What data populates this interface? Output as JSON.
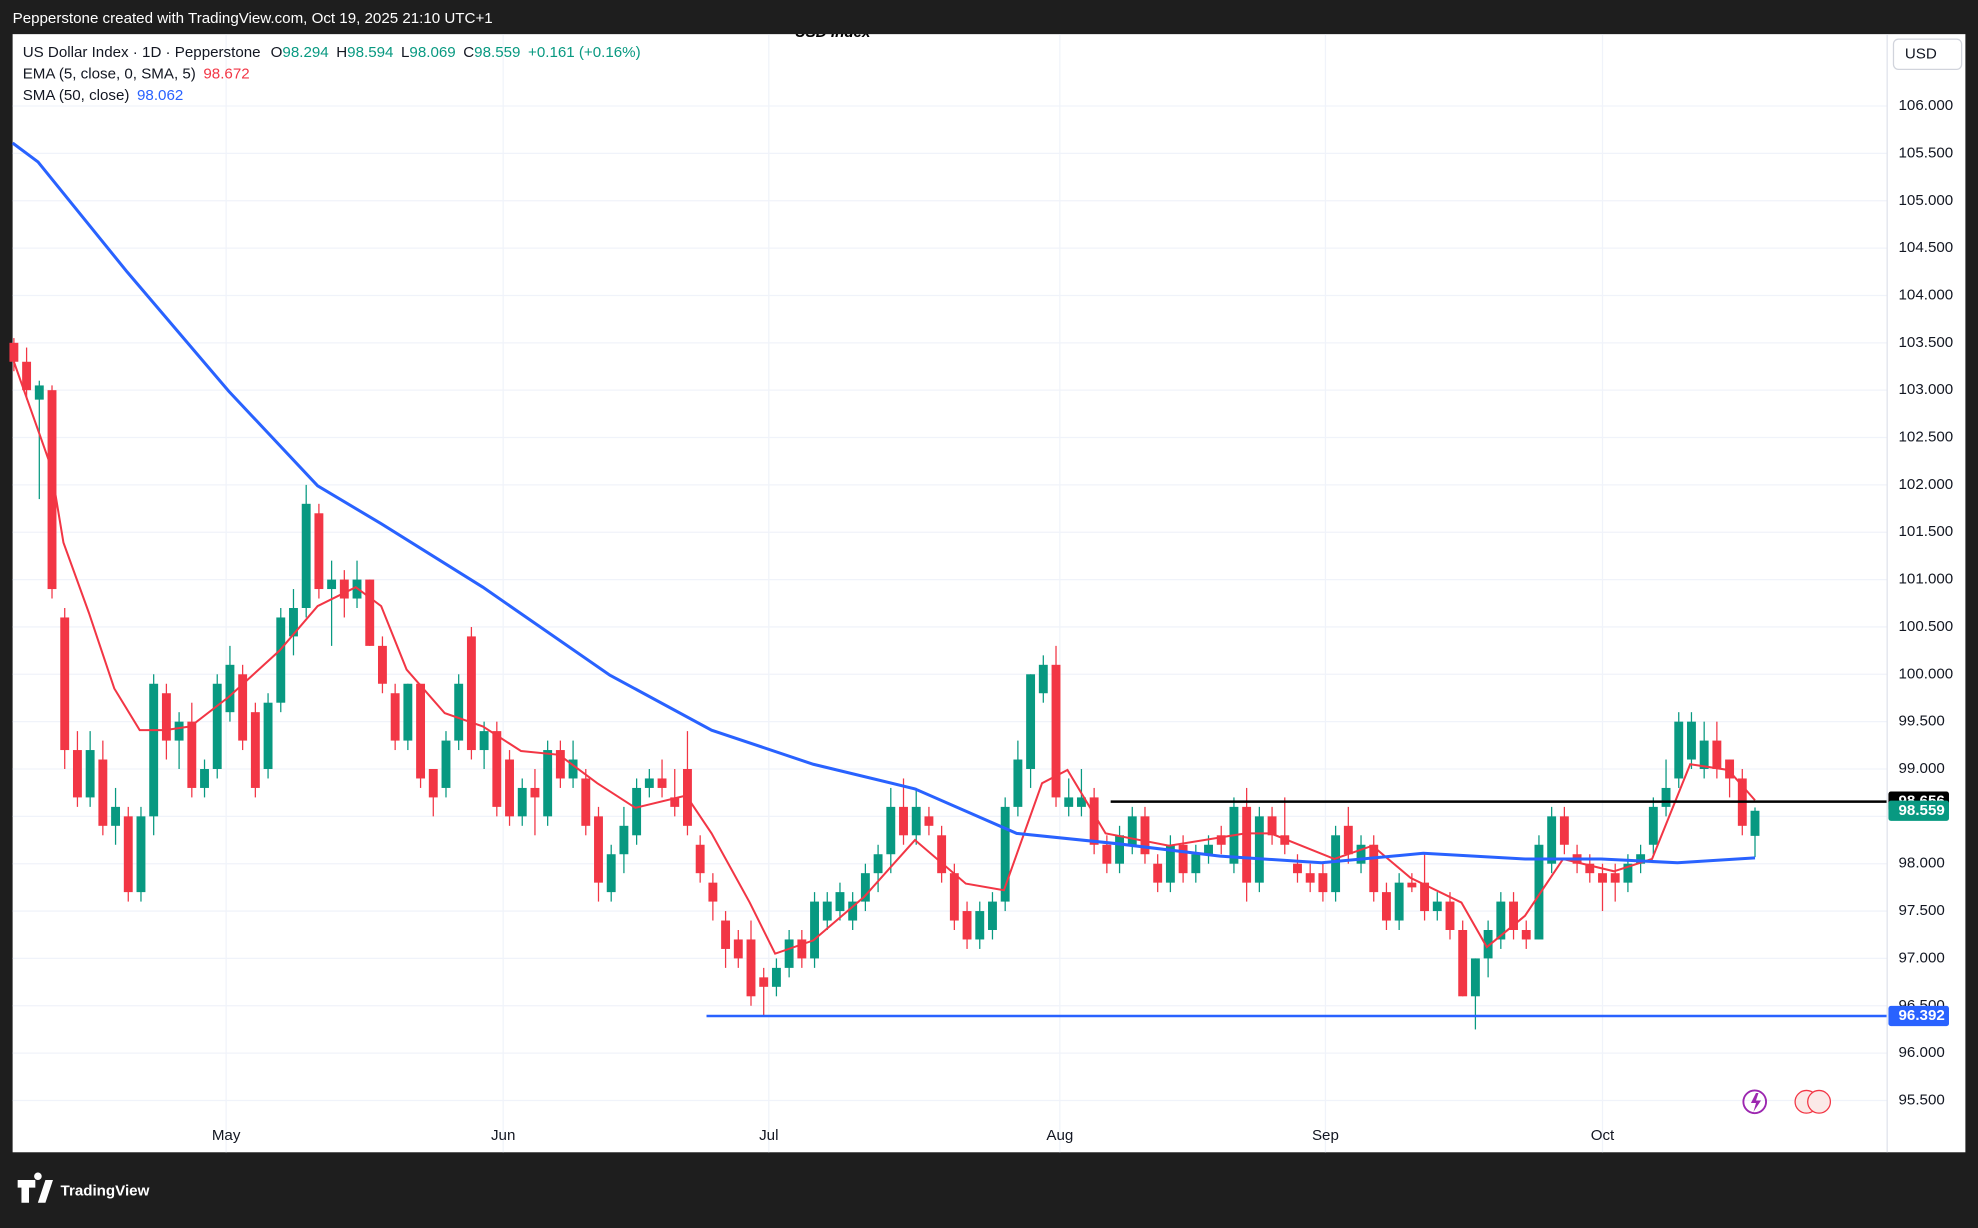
{
  "chart_data": {
    "type": "candlestick",
    "title": "USD Index",
    "attribution": "Pepperstone created with TradingView.com, Oct 19, 2025 21:10 UTC+1",
    "brand": "TradingView",
    "currency": "USD",
    "legend": {
      "symbol": "US Dollar Index · 1D · Pepperstone",
      "ohlc_labels": [
        "O",
        "H",
        "L",
        "C"
      ],
      "ohlc_values": [
        "98.294",
        "98.594",
        "98.069",
        "98.559"
      ],
      "change": "+0.161 (+0.16%)",
      "ema_label": "EMA (5, close, 0, SMA, 5)",
      "ema_value": "98.672",
      "sma_label": "SMA (50, close)",
      "sma_value": "98.062"
    },
    "up_color": "#089981",
    "down_color": "#f23645",
    "xlim": [
      -0.1,
      147.4
    ],
    "ylim": [
      94.953,
      106.76
    ],
    "xticks": [
      {
        "value": 16.7,
        "label": "May"
      },
      {
        "value": 38.5,
        "label": "Jun"
      },
      {
        "value": 59.4,
        "label": "Jul"
      },
      {
        "value": 82.3,
        "label": "Aug"
      },
      {
        "value": 103.2,
        "label": "Sep"
      },
      {
        "value": 125.0,
        "label": "Oct"
      }
    ],
    "yticks": [
      {
        "value": 95.5,
        "label": "95.500"
      },
      {
        "value": 96,
        "label": "96.000"
      },
      {
        "value": 96.5,
        "label": "96.500"
      },
      {
        "value": 97,
        "label": "97.000"
      },
      {
        "value": 97.5,
        "label": "97.500"
      },
      {
        "value": 98,
        "label": "98.000"
      },
      {
        "value": 98.5,
        "label": "98.500"
      },
      {
        "value": 99,
        "label": "99.000"
      },
      {
        "value": 99.5,
        "label": "99.500"
      },
      {
        "value": 100,
        "label": "100.000"
      },
      {
        "value": 100.5,
        "label": "100.500"
      },
      {
        "value": 101,
        "label": "101.000"
      },
      {
        "value": 101.5,
        "label": "101.500"
      },
      {
        "value": 102,
        "label": "102.000"
      },
      {
        "value": 102.5,
        "label": "102.500"
      },
      {
        "value": 103,
        "label": "103.000"
      },
      {
        "value": 103.5,
        "label": "103.500"
      },
      {
        "value": 104,
        "label": "104.000"
      },
      {
        "value": 104.5,
        "label": "104.500"
      },
      {
        "value": 105,
        "label": "105.000"
      },
      {
        "value": 105.5,
        "label": "105.500"
      },
      {
        "value": 106,
        "label": "106.000"
      }
    ],
    "grid": true,
    "candles": [
      [
        103.5,
        103.55,
        103.2,
        103.3
      ],
      [
        103.3,
        103.45,
        102.9,
        103.0
      ],
      [
        102.9,
        103.1,
        101.85,
        103.05
      ],
      [
        103.0,
        103.05,
        100.8,
        100.9
      ],
      [
        100.6,
        100.7,
        99.0,
        99.2
      ],
      [
        99.2,
        99.4,
        98.6,
        98.7
      ],
      [
        98.7,
        99.4,
        98.6,
        99.2
      ],
      [
        99.1,
        99.3,
        98.3,
        98.4
      ],
      [
        98.4,
        98.8,
        98.2,
        98.6
      ],
      [
        98.5,
        98.6,
        97.6,
        97.7
      ],
      [
        97.7,
        98.6,
        97.6,
        98.5
      ],
      [
        98.5,
        100.0,
        98.3,
        99.9
      ],
      [
        99.8,
        99.9,
        99.1,
        99.3
      ],
      [
        99.3,
        99.6,
        99.0,
        99.5
      ],
      [
        99.5,
        99.7,
        98.7,
        98.8
      ],
      [
        98.8,
        99.1,
        98.7,
        99.0
      ],
      [
        99.0,
        100.0,
        98.9,
        99.9
      ],
      [
        99.6,
        100.3,
        99.5,
        100.1
      ],
      [
        100.0,
        100.1,
        99.2,
        99.3
      ],
      [
        99.6,
        99.7,
        98.7,
        98.8
      ],
      [
        99.0,
        99.8,
        98.9,
        99.7
      ],
      [
        99.7,
        100.7,
        99.6,
        100.6
      ],
      [
        100.4,
        100.9,
        100.2,
        100.7
      ],
      [
        100.7,
        102.0,
        100.6,
        101.8
      ],
      [
        101.7,
        101.8,
        100.8,
        100.9
      ],
      [
        100.9,
        101.2,
        100.3,
        101.0
      ],
      [
        101.0,
        101.1,
        100.6,
        100.8
      ],
      [
        100.8,
        101.2,
        100.7,
        101.0
      ],
      [
        101.0,
        101.0,
        100.3,
        100.3
      ],
      [
        100.3,
        100.4,
        99.8,
        99.9
      ],
      [
        99.8,
        99.9,
        99.2,
        99.3
      ],
      [
        99.3,
        99.9,
        99.2,
        99.9
      ],
      [
        99.9,
        99.9,
        98.8,
        98.9
      ],
      [
        99.0,
        99.0,
        98.5,
        98.7
      ],
      [
        98.8,
        99.4,
        98.7,
        99.3
      ],
      [
        99.3,
        100.0,
        99.2,
        99.9
      ],
      [
        100.4,
        100.5,
        99.1,
        99.2
      ],
      [
        99.2,
        99.5,
        99.0,
        99.4
      ],
      [
        99.4,
        99.5,
        98.5,
        98.6
      ],
      [
        99.1,
        99.2,
        98.4,
        98.5
      ],
      [
        98.5,
        98.9,
        98.4,
        98.8
      ],
      [
        98.8,
        99.0,
        98.3,
        98.7
      ],
      [
        98.5,
        99.3,
        98.4,
        99.2
      ],
      [
        99.2,
        99.3,
        98.8,
        98.9
      ],
      [
        98.9,
        99.3,
        98.8,
        99.1
      ],
      [
        98.9,
        99.0,
        98.3,
        98.4
      ],
      [
        98.5,
        98.6,
        97.6,
        97.8
      ],
      [
        97.7,
        98.2,
        97.6,
        98.1
      ],
      [
        98.1,
        98.6,
        97.9,
        98.4
      ],
      [
        98.3,
        98.9,
        98.2,
        98.8
      ],
      [
        98.8,
        99.0,
        98.7,
        98.9
      ],
      [
        98.9,
        99.1,
        98.7,
        98.8
      ],
      [
        98.7,
        99.0,
        98.5,
        98.6
      ],
      [
        99.0,
        99.4,
        98.3,
        98.4
      ],
      [
        98.2,
        98.3,
        97.8,
        97.9
      ],
      [
        97.8,
        97.9,
        97.4,
        97.6
      ],
      [
        97.4,
        97.5,
        96.9,
        97.1
      ],
      [
        97.2,
        97.3,
        96.9,
        97.0
      ],
      [
        97.2,
        97.4,
        96.5,
        96.6
      ],
      [
        96.8,
        96.9,
        96.4,
        96.7
      ],
      [
        96.7,
        97.0,
        96.6,
        96.9
      ],
      [
        96.9,
        97.3,
        96.8,
        97.2
      ],
      [
        97.2,
        97.3,
        96.9,
        97.0
      ],
      [
        97.0,
        97.7,
        96.9,
        97.6
      ],
      [
        97.4,
        97.7,
        97.3,
        97.6
      ],
      [
        97.5,
        97.8,
        97.4,
        97.7
      ],
      [
        97.4,
        97.7,
        97.3,
        97.6
      ],
      [
        97.6,
        98.0,
        97.5,
        97.9
      ],
      [
        97.9,
        98.2,
        97.7,
        98.1
      ],
      [
        98.1,
        98.8,
        97.9,
        98.6
      ],
      [
        98.6,
        98.9,
        98.2,
        98.3
      ],
      [
        98.3,
        98.8,
        98.2,
        98.6
      ],
      [
        98.5,
        98.6,
        98.3,
        98.4
      ],
      [
        98.3,
        98.4,
        97.8,
        97.9
      ],
      [
        97.9,
        98.0,
        97.3,
        97.4
      ],
      [
        97.5,
        97.6,
        97.1,
        97.2
      ],
      [
        97.2,
        97.6,
        97.1,
        97.5
      ],
      [
        97.3,
        97.7,
        97.2,
        97.6
      ],
      [
        97.6,
        98.7,
        97.5,
        98.6
      ],
      [
        98.6,
        99.3,
        98.5,
        99.1
      ],
      [
        99.0,
        100.0,
        98.8,
        100.0
      ],
      [
        99.8,
        100.2,
        99.7,
        100.1
      ],
      [
        100.1,
        100.3,
        98.6,
        98.7
      ],
      [
        98.6,
        98.9,
        98.5,
        98.7
      ],
      [
        98.6,
        99.0,
        98.5,
        98.7
      ],
      [
        98.7,
        98.8,
        98.1,
        98.2
      ],
      [
        98.2,
        98.3,
        97.9,
        98.0
      ],
      [
        98.0,
        98.4,
        97.9,
        98.3
      ],
      [
        98.2,
        98.6,
        98.1,
        98.5
      ],
      [
        98.5,
        98.6,
        98.0,
        98.1
      ],
      [
        98.0,
        98.1,
        97.7,
        97.8
      ],
      [
        97.8,
        98.3,
        97.7,
        98.2
      ],
      [
        98.2,
        98.3,
        97.8,
        97.9
      ],
      [
        97.9,
        98.2,
        97.8,
        98.1
      ],
      [
        98.1,
        98.3,
        98.0,
        98.2
      ],
      [
        98.3,
        98.4,
        98.1,
        98.2
      ],
      [
        98.0,
        98.7,
        97.9,
        98.6
      ],
      [
        98.6,
        98.8,
        97.6,
        97.8
      ],
      [
        97.8,
        98.6,
        97.7,
        98.5
      ],
      [
        98.5,
        98.6,
        98.2,
        98.3
      ],
      [
        98.3,
        98.7,
        98.1,
        98.2
      ],
      [
        98.0,
        98.1,
        97.8,
        97.9
      ],
      [
        97.9,
        98.0,
        97.7,
        97.8
      ],
      [
        97.9,
        98.0,
        97.6,
        97.7
      ],
      [
        97.7,
        98.4,
        97.6,
        98.3
      ],
      [
        98.4,
        98.6,
        98.0,
        98.1
      ],
      [
        98.0,
        98.3,
        97.9,
        98.2
      ],
      [
        98.2,
        98.3,
        97.6,
        97.7
      ],
      [
        97.7,
        97.8,
        97.3,
        97.4
      ],
      [
        97.4,
        97.9,
        97.3,
        97.8
      ],
      [
        97.8,
        97.9,
        97.7,
        97.75
      ],
      [
        97.8,
        98.1,
        97.4,
        97.5
      ],
      [
        97.5,
        97.7,
        97.4,
        97.6
      ],
      [
        97.6,
        97.7,
        97.2,
        97.3
      ],
      [
        97.3,
        97.4,
        96.6,
        96.6
      ],
      [
        96.6,
        97.0,
        96.25,
        97.0
      ],
      [
        97.0,
        97.4,
        96.8,
        97.3
      ],
      [
        97.2,
        97.7,
        97.1,
        97.6
      ],
      [
        97.6,
        97.7,
        97.2,
        97.3
      ],
      [
        97.3,
        97.4,
        97.1,
        97.2
      ],
      [
        97.2,
        98.3,
        97.2,
        98.2
      ],
      [
        98.0,
        98.6,
        97.9,
        98.5
      ],
      [
        98.5,
        98.6,
        98.1,
        98.2
      ],
      [
        98.1,
        98.2,
        97.9,
        98.0
      ],
      [
        98.0,
        98.1,
        97.8,
        97.9
      ],
      [
        97.9,
        98.0,
        97.5,
        97.8
      ],
      [
        97.9,
        98.0,
        97.6,
        97.8
      ],
      [
        97.8,
        98.1,
        97.7,
        98.0
      ],
      [
        98.0,
        98.2,
        97.9,
        98.1
      ],
      [
        98.2,
        98.7,
        98.1,
        98.6
      ],
      [
        98.6,
        99.1,
        98.5,
        98.8
      ],
      [
        98.9,
        99.6,
        98.8,
        99.5
      ],
      [
        99.1,
        99.6,
        99.0,
        99.5
      ],
      [
        99.0,
        99.5,
        98.9,
        99.3
      ],
      [
        99.3,
        99.5,
        98.9,
        99.0
      ],
      [
        99.1,
        99.1,
        98.7,
        98.9
      ],
      [
        98.9,
        99.0,
        98.3,
        98.4
      ],
      [
        98.294,
        98.594,
        98.069,
        98.559
      ]
    ],
    "series": [
      {
        "name": "EMA",
        "color": "#f23645",
        "width": 1.6,
        "x": [
          0,
          2.9,
          3.9,
          5.9,
          7.9,
          9.9,
          11.9,
          13.9,
          16.9,
          20.9,
          23.9,
          26.9,
          28.9,
          30.9,
          33.9,
          36.9,
          39.9,
          42.9,
          45.9,
          48.9,
          52.9,
          54.9,
          57.9,
          59.9,
          62.9,
          66.9,
          70.9,
          74.9,
          77.9,
          80.9,
          82.9,
          85.9,
          90.9,
          96.9,
          98.9,
          103.9,
          106.9,
          109.9,
          113.9,
          115.9,
          118.9,
          121.9,
          125.9,
          128.9,
          131.9,
          134.9,
          137.0
        ],
        "values": [
          103.3,
          102.2,
          101.39,
          100.65,
          99.85,
          99.41,
          99.41,
          99.45,
          99.76,
          100.25,
          100.72,
          100.92,
          100.72,
          100.05,
          99.59,
          99.45,
          99.19,
          99.15,
          98.85,
          98.59,
          98.72,
          98.32,
          97.59,
          97.05,
          97.19,
          97.65,
          98.25,
          97.79,
          97.72,
          98.85,
          98.99,
          98.32,
          98.19,
          98.32,
          98.32,
          98.05,
          98.19,
          97.85,
          97.59,
          97.12,
          97.45,
          98.05,
          97.92,
          98.05,
          99.05,
          98.99,
          98.67
        ]
      },
      {
        "name": "SMA",
        "color": "#2962ff",
        "width": 2.4,
        "x": [
          -0.1,
          1.9,
          8.9,
          16.9,
          23.9,
          28.9,
          36.9,
          46.9,
          54.9,
          62.9,
          70.9,
          78.9,
          86.9,
          94.9,
          102.9,
          110.9,
          118.9,
          124.9,
          130.9,
          137.0
        ],
        "values": [
          105.61,
          105.41,
          104.25,
          102.99,
          101.99,
          101.59,
          100.92,
          99.99,
          99.41,
          99.05,
          98.79,
          98.32,
          98.21,
          98.08,
          98.01,
          98.11,
          98.05,
          98.05,
          98.01,
          98.062
        ]
      }
    ],
    "levels": [
      {
        "value": 98.656,
        "label": "98.656",
        "color": "#000000",
        "start": 86.3
      },
      {
        "value": 96.392,
        "label": "96.392",
        "color": "#2962ff",
        "start": 54.5
      }
    ],
    "last_label": "98.559"
  }
}
